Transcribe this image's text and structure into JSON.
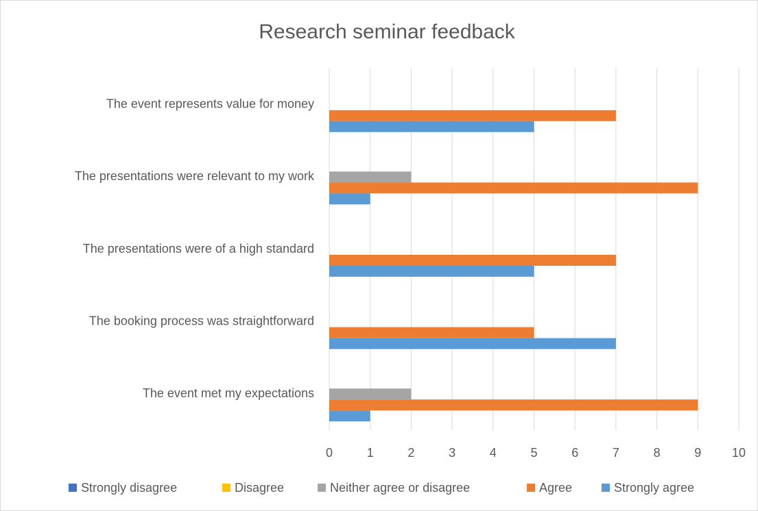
{
  "chart_data": {
    "type": "bar",
    "orientation": "horizontal",
    "title": "Research seminar feedback",
    "categories": [
      "The event met my expectations",
      "The booking process was straightforward",
      "The presentations were of a high standard",
      "The presentations were relevant to my work",
      "The event represents value for money"
    ],
    "series": [
      {
        "name": "Strongly disagree",
        "color": "#4472c4",
        "values": [
          0,
          0,
          0,
          0,
          0
        ]
      },
      {
        "name": "Disagree",
        "color": "#ffc000",
        "values": [
          0,
          0,
          0,
          0,
          0
        ]
      },
      {
        "name": "Neither agree or disagree",
        "color": "#a5a5a5",
        "values": [
          2,
          0,
          0,
          2,
          0
        ]
      },
      {
        "name": "Agree",
        "color": "#ed7d31",
        "values": [
          9,
          5,
          7,
          9,
          7
        ]
      },
      {
        "name": "Strongly agree",
        "color": "#5b9bd5",
        "values": [
          1,
          7,
          5,
          1,
          5
        ]
      }
    ],
    "xlim": [
      0,
      10
    ],
    "xticks": [
      0,
      1,
      2,
      3,
      4,
      5,
      6,
      7,
      8,
      9,
      10
    ],
    "grid": true,
    "legend": "bottom"
  }
}
